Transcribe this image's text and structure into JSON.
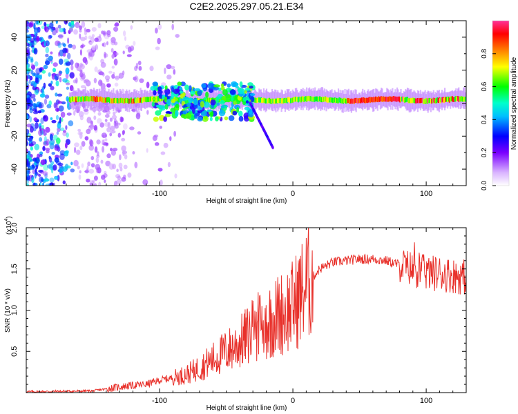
{
  "title": "C2E2.2025.297.05.21.E34",
  "chart_data": [
    {
      "type": "heatmap",
      "name": "spectrogram",
      "xlabel": "Height of straight line (km)",
      "ylabel": "Frequency (Hz)",
      "xlim": [
        -200,
        130
      ],
      "ylim": [
        -50,
        50
      ],
      "xticks": [
        -100,
        0,
        100
      ],
      "yticks": [
        -40,
        -20,
        0,
        20,
        40
      ],
      "colorbar": {
        "label": "Normalized spectral amplitude",
        "range": [
          0,
          1
        ],
        "ticks": [
          0.0,
          0.2,
          0.4,
          0.6,
          0.8
        ],
        "colors": [
          "#ffffff",
          "#9b30ff",
          "#0000ff",
          "#00ffff",
          "#00ff00",
          "#ffff00",
          "#ff8000",
          "#ff0000",
          "#ff3399"
        ]
      },
      "features": [
        {
          "desc": "scattered noise",
          "x_range": [
            -200,
            -125
          ],
          "freq_range": [
            -50,
            50
          ],
          "amplitude": 0.2
        },
        {
          "desc": "main band",
          "x_range": [
            -168,
            130
          ],
          "freq": 2,
          "amplitude": 0.9
        },
        {
          "desc": "broadband cluster",
          "x_range": [
            -105,
            -30
          ],
          "freq_range": [
            -10,
            12
          ],
          "amplitude": 0.6
        },
        {
          "desc": "descending trace",
          "x_range": [
            -32,
            -15
          ],
          "freq_range": [
            -27,
            0
          ],
          "amplitude": 0.25
        }
      ]
    },
    {
      "type": "line",
      "name": "snr",
      "xlabel": "Height of straight line (km)",
      "ylabel": "SNR (10 * v/v)",
      "y_multiplier_label": "(x10",
      "y_multiplier_exp": "4",
      "xlim": [
        -200,
        130
      ],
      "ylim": [
        0,
        2.0
      ],
      "xticks": [
        -100,
        0,
        100
      ],
      "yticks": [
        0.5,
        1.0,
        1.5,
        2.0
      ],
      "color": "#e8302a",
      "series": [
        {
          "name": "SNR",
          "x": [
            -200,
            -150,
            -125,
            -110,
            -100,
            -90,
            -80,
            -70,
            -60,
            -50,
            -40,
            -30,
            -20,
            -10,
            0,
            10,
            20,
            30,
            40,
            50,
            60,
            70,
            80,
            90,
            100,
            110,
            120,
            130
          ],
          "values": [
            0.01,
            0.02,
            0.08,
            0.1,
            0.15,
            0.18,
            0.22,
            0.3,
            0.4,
            0.5,
            0.6,
            0.75,
            0.85,
            0.95,
            1.05,
            1.3,
            1.5,
            1.58,
            1.6,
            1.62,
            1.62,
            1.6,
            1.55,
            1.5,
            1.45,
            1.45,
            1.42,
            1.4
          ]
        }
      ]
    }
  ]
}
